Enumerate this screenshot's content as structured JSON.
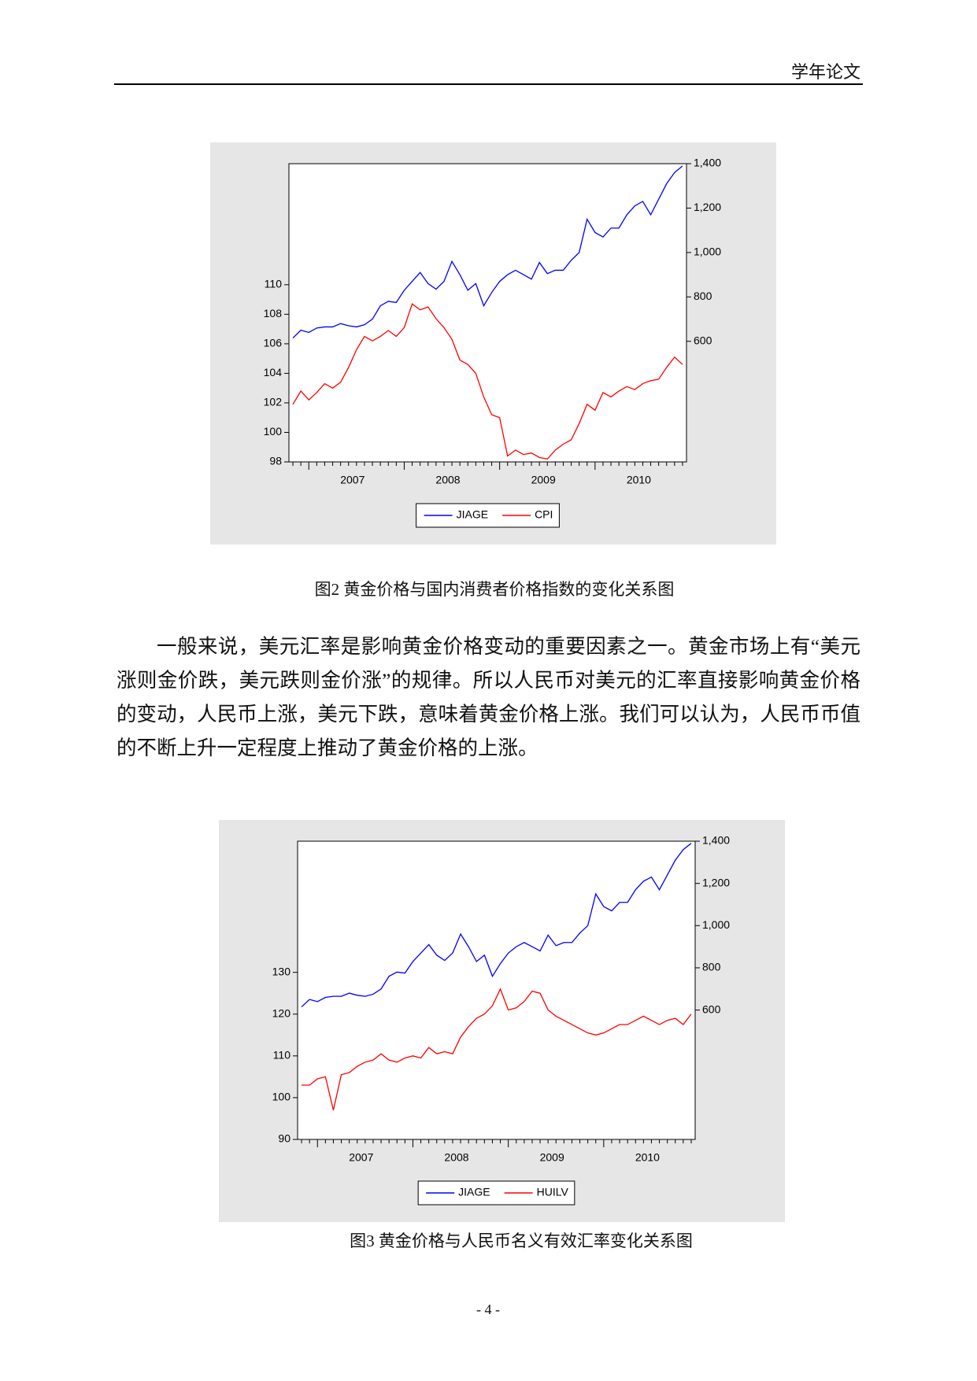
{
  "header": {
    "title": "学年论文"
  },
  "chart_data": [
    {
      "type": "line",
      "categories": [
        null,
        null,
        null,
        null,
        null,
        null,
        null,
        "2007",
        null,
        null,
        null,
        null,
        null,
        null,
        null,
        null,
        null,
        null,
        null,
        "2008",
        null,
        null,
        null,
        null,
        null,
        null,
        null,
        null,
        null,
        null,
        null,
        "2009",
        null,
        null,
        null,
        null,
        null,
        null,
        null,
        null,
        null,
        null,
        null,
        "2010",
        null,
        null,
        null,
        null,
        null,
        null
      ],
      "series": [
        {
          "name": "JIAGE",
          "color": "#0000ff",
          "axis": "y2",
          "values": [
            615,
            650,
            640,
            660,
            665,
            665,
            680,
            670,
            665,
            675,
            700,
            760,
            780,
            775,
            830,
            870,
            910,
            860,
            835,
            870,
            960,
            900,
            830,
            860,
            760,
            820,
            870,
            900,
            920,
            900,
            880,
            955,
            905,
            920,
            920,
            965,
            1000,
            1150,
            1090,
            1070,
            1110,
            1110,
            1170,
            1210,
            1230,
            1170,
            1240,
            1310,
            1360,
            1390
          ]
        },
        {
          "name": "CPI",
          "color": "#ff0000",
          "values": [
            101.9,
            102.8,
            102.2,
            102.7,
            103.3,
            103.0,
            103.4,
            104.4,
            105.6,
            106.5,
            106.2,
            106.5,
            106.9,
            106.5,
            107.1,
            108.7,
            108.3,
            108.5,
            107.7,
            107.1,
            106.3,
            104.9,
            104.6,
            104.0,
            102.4,
            101.2,
            101.0,
            98.4,
            98.8,
            98.5,
            98.6,
            98.3,
            98.2,
            98.8,
            99.2,
            99.5,
            100.6,
            101.9,
            101.5,
            102.7,
            102.4,
            102.8,
            103.1,
            102.9,
            103.3,
            103.5,
            103.6,
            104.4,
            105.1,
            104.6
          ]
        }
      ],
      "ylim": [
        98,
        118.2
      ],
      "yticks": [
        98,
        100,
        102,
        104,
        106,
        108,
        110
      ],
      "y2lim": [
        57,
        1400
      ],
      "y2ticks": [
        600,
        800,
        {
          "value": 1000,
          "label": "1,000"
        },
        {
          "value": 1200,
          "label": "1,200"
        },
        {
          "value": 1400,
          "label": "1,400"
        }
      ],
      "legend": "bottom"
    },
    {
      "type": "line",
      "categories": [
        null,
        null,
        null,
        null,
        null,
        null,
        null,
        "2007",
        null,
        null,
        null,
        null,
        null,
        null,
        null,
        null,
        null,
        null,
        null,
        "2008",
        null,
        null,
        null,
        null,
        null,
        null,
        null,
        null,
        null,
        null,
        null,
        "2009",
        null,
        null,
        null,
        null,
        null,
        null,
        null,
        null,
        null,
        null,
        null,
        "2010",
        null,
        null,
        null,
        null,
        null,
        null
      ],
      "series": [
        {
          "name": "JIAGE",
          "color": "#0000ff",
          "axis": "y2",
          "values": [
            615,
            650,
            640,
            660,
            665,
            665,
            680,
            670,
            665,
            675,
            700,
            760,
            780,
            775,
            830,
            870,
            910,
            860,
            835,
            870,
            960,
            900,
            830,
            860,
            760,
            820,
            870,
            900,
            920,
            900,
            880,
            955,
            905,
            920,
            920,
            965,
            1000,
            1150,
            1090,
            1070,
            1110,
            1110,
            1170,
            1210,
            1230,
            1170,
            1240,
            1310,
            1360,
            1390
          ]
        },
        {
          "name": "HUILV",
          "color": "#ff0000",
          "values": [
            103,
            103,
            104.5,
            105,
            97,
            105.5,
            106,
            107.5,
            108.5,
            109,
            110.5,
            109,
            108.5,
            109.5,
            110,
            109.5,
            112,
            110.5,
            111,
            110.5,
            114.5,
            117,
            119,
            120,
            122,
            126,
            121,
            121.5,
            123,
            125.5,
            125,
            121,
            119.5,
            118.5,
            117.5,
            116.5,
            115.5,
            115,
            115.5,
            116.5,
            117.5,
            117.5,
            118.5,
            119.5,
            118.5,
            117.5,
            118.5,
            119,
            117.5,
            120
          ]
        }
      ],
      "ylim": [
        90,
        161.4
      ],
      "yticks": [
        90,
        100,
        110,
        120,
        130
      ],
      "y2lim": [
        -13,
        1400
      ],
      "y2ticks": [
        600,
        800,
        {
          "value": 1000,
          "label": "1,000"
        },
        {
          "value": 1200,
          "label": "1,200"
        },
        {
          "value": 1400,
          "label": "1,400"
        }
      ],
      "legend": "bottom"
    }
  ],
  "captions": [
    "图2  黄金价格与国内消费者价格指数的变化关系图",
    "图3  黄金价格与人民币名义有效汇率变化关系图"
  ],
  "paragraph": "一般来说，美元汇率是影响黄金价格变动的重要因素之一。黄金市场上有“美元涨则金价跌，美元跌则金价涨”的规律。所以人民币对美元的汇率直接影响黄金价格的变动，人民币上涨，美元下跌，意味着黄金价格上涨。我们可以认为，人民币币值的不断上升一定程度上推动了黄金价格的上涨。",
  "footer": {
    "page_number": "- 4 -"
  }
}
